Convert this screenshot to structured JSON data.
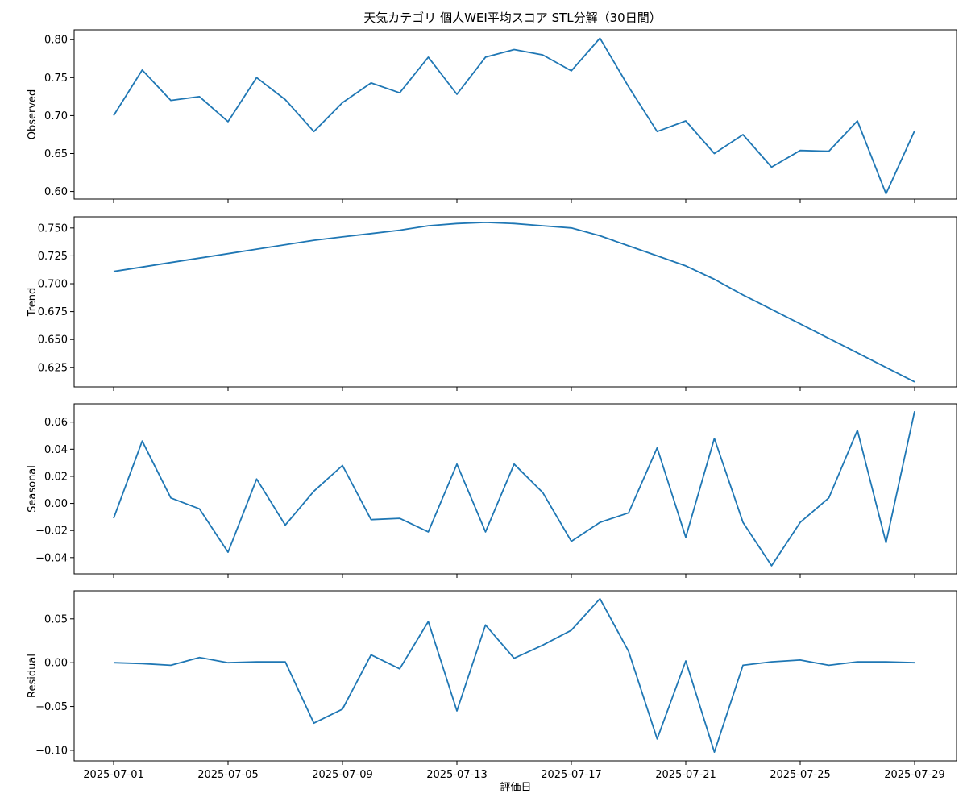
{
  "figure": {
    "title": "天気カテゴリ 個人WEI平均スコア STL分解（30日間）",
    "xlabel": "評価日",
    "line_color": "#1f77b4"
  },
  "chart_data": [
    {
      "type": "line",
      "ylabel": "Observed",
      "ylim": [
        0.59,
        0.813
      ],
      "yticks": [
        "0.60",
        "0.65",
        "0.70",
        "0.75",
        "0.80"
      ],
      "x": [
        "2025-07-01",
        "2025-07-02",
        "2025-07-03",
        "2025-07-04",
        "2025-07-05",
        "2025-07-06",
        "2025-07-07",
        "2025-07-08",
        "2025-07-09",
        "2025-07-10",
        "2025-07-11",
        "2025-07-12",
        "2025-07-13",
        "2025-07-14",
        "2025-07-15",
        "2025-07-16",
        "2025-07-17",
        "2025-07-18",
        "2025-07-19",
        "2025-07-20",
        "2025-07-21",
        "2025-07-22",
        "2025-07-23",
        "2025-07-24",
        "2025-07-25",
        "2025-07-26",
        "2025-07-27",
        "2025-07-28",
        "2025-07-29"
      ],
      "values": [
        0.7,
        0.76,
        0.72,
        0.725,
        0.692,
        0.75,
        0.721,
        0.679,
        0.717,
        0.743,
        0.73,
        0.777,
        0.728,
        0.777,
        0.787,
        0.78,
        0.759,
        0.802,
        0.738,
        0.679,
        0.693,
        0.65,
        0.675,
        0.632,
        0.654,
        0.653,
        0.693,
        0.597,
        0.68
      ]
    },
    {
      "type": "line",
      "ylabel": "Trend",
      "ylim": [
        0.6075,
        0.76
      ],
      "yticks": [
        "0.625",
        "0.650",
        "0.675",
        "0.700",
        "0.725",
        "0.750"
      ],
      "x": [
        "2025-07-01",
        "2025-07-02",
        "2025-07-03",
        "2025-07-04",
        "2025-07-05",
        "2025-07-06",
        "2025-07-07",
        "2025-07-08",
        "2025-07-09",
        "2025-07-10",
        "2025-07-11",
        "2025-07-12",
        "2025-07-13",
        "2025-07-14",
        "2025-07-15",
        "2025-07-16",
        "2025-07-17",
        "2025-07-18",
        "2025-07-19",
        "2025-07-20",
        "2025-07-21",
        "2025-07-22",
        "2025-07-23",
        "2025-07-24",
        "2025-07-25",
        "2025-07-26",
        "2025-07-27",
        "2025-07-28",
        "2025-07-29"
      ],
      "values": [
        0.711,
        0.715,
        0.719,
        0.723,
        0.727,
        0.731,
        0.735,
        0.739,
        0.742,
        0.745,
        0.748,
        0.752,
        0.754,
        0.755,
        0.754,
        0.752,
        0.75,
        0.743,
        0.734,
        0.725,
        0.716,
        0.704,
        0.69,
        0.677,
        0.664,
        0.651,
        0.638,
        0.625,
        0.612
      ]
    },
    {
      "type": "line",
      "ylabel": "Seasonal",
      "ylim": [
        -0.052,
        0.0735
      ],
      "yticks": [
        "−0.04",
        "−0.02",
        "0.00",
        "0.02",
        "0.04",
        "0.06"
      ],
      "x": [
        "2025-07-01",
        "2025-07-02",
        "2025-07-03",
        "2025-07-04",
        "2025-07-05",
        "2025-07-06",
        "2025-07-07",
        "2025-07-08",
        "2025-07-09",
        "2025-07-10",
        "2025-07-11",
        "2025-07-12",
        "2025-07-13",
        "2025-07-14",
        "2025-07-15",
        "2025-07-16",
        "2025-07-17",
        "2025-07-18",
        "2025-07-19",
        "2025-07-20",
        "2025-07-21",
        "2025-07-22",
        "2025-07-23",
        "2025-07-24",
        "2025-07-25",
        "2025-07-26",
        "2025-07-27",
        "2025-07-28",
        "2025-07-29"
      ],
      "values": [
        -0.011,
        0.046,
        0.004,
        -0.004,
        -0.036,
        0.018,
        -0.016,
        0.009,
        0.028,
        -0.012,
        -0.011,
        -0.021,
        0.029,
        -0.021,
        0.029,
        0.008,
        -0.028,
        -0.014,
        -0.007,
        0.041,
        -0.025,
        0.048,
        -0.014,
        -0.046,
        -0.014,
        0.004,
        0.054,
        -0.029,
        0.068
      ]
    },
    {
      "type": "line",
      "ylabel": "Residual",
      "ylim": [
        -0.112,
        0.082
      ],
      "yticks": [
        "−0.10",
        "−0.05",
        "0.00",
        "0.05"
      ],
      "xticks": [
        "2025-07-01",
        "2025-07-05",
        "2025-07-09",
        "2025-07-13",
        "2025-07-17",
        "2025-07-21",
        "2025-07-25",
        "2025-07-29"
      ],
      "x": [
        "2025-07-01",
        "2025-07-02",
        "2025-07-03",
        "2025-07-04",
        "2025-07-05",
        "2025-07-06",
        "2025-07-07",
        "2025-07-08",
        "2025-07-09",
        "2025-07-10",
        "2025-07-11",
        "2025-07-12",
        "2025-07-13",
        "2025-07-14",
        "2025-07-15",
        "2025-07-16",
        "2025-07-17",
        "2025-07-18",
        "2025-07-19",
        "2025-07-20",
        "2025-07-21",
        "2025-07-22",
        "2025-07-23",
        "2025-07-24",
        "2025-07-25",
        "2025-07-26",
        "2025-07-27",
        "2025-07-28",
        "2025-07-29"
      ],
      "values": [
        0.0,
        -0.001,
        -0.003,
        0.006,
        0.0,
        0.001,
        0.001,
        -0.069,
        -0.053,
        0.009,
        -0.007,
        0.047,
        -0.055,
        0.043,
        0.005,
        0.02,
        0.037,
        0.073,
        0.013,
        -0.087,
        0.002,
        -0.102,
        -0.003,
        0.001,
        0.003,
        -0.003,
        0.001,
        0.001,
        0.0
      ]
    }
  ]
}
